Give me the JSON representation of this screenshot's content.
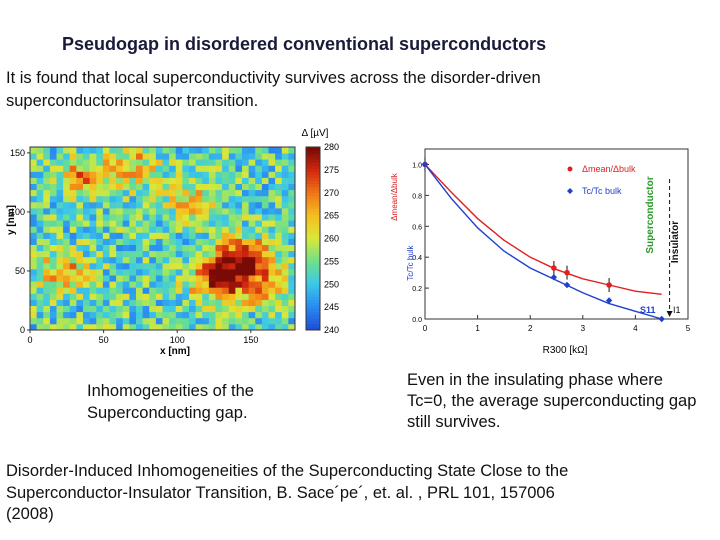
{
  "slide": {
    "title": "Pseudogap in  disordered conventional superconductors",
    "intro": "It is found that local superconductivity survives across the disorder-driven superconductorinsulator transition.",
    "caption_left": "Inhomogeneities of the Superconducting gap.",
    "caption_right": "Even in the insulating phase where Tc=0, the average superconducting gap still survives.",
    "reference_lines": [
      "Disorder-Induced Inhomogeneities of the Superconducting State  Close to the",
      "Superconductor-Insulator Transition, B. Sace´pe´, et.  al. , PRL 101, 157006",
      "(2008)"
    ]
  },
  "chart_data": [
    {
      "type": "heatmap",
      "title": "",
      "xlabel": "x [nm]",
      "ylabel": "y [nm]",
      "xlim": [
        0,
        180
      ],
      "ylim": [
        0,
        155
      ],
      "x_ticks": [
        "0",
        "50",
        "100",
        "150"
      ],
      "y_ticks": [
        "0",
        "50",
        "100",
        "150"
      ],
      "colorbar": {
        "label": "Δ [µV]",
        "range": [
          240,
          280
        ],
        "ticks": [
          "240",
          "245",
          "250",
          "255",
          "260",
          "265",
          "270",
          "275",
          "280"
        ],
        "colors": [
          "#1e4fd8",
          "#2a8cf0",
          "#3cc8e8",
          "#6fe08a",
          "#d8e83a",
          "#f5c020",
          "#f07a18",
          "#d42a10",
          "#7a0a05"
        ]
      },
      "hot_regions": [
        {
          "x": 143,
          "y": 62,
          "strength": 1.0
        },
        {
          "x": 128,
          "y": 42,
          "strength": 0.85
        },
        {
          "x": 160,
          "y": 38,
          "strength": 0.55
        },
        {
          "x": 38,
          "y": 128,
          "strength": 0.55
        },
        {
          "x": 70,
          "y": 138,
          "strength": 0.45
        },
        {
          "x": 22,
          "y": 48,
          "strength": 0.5
        },
        {
          "x": 108,
          "y": 108,
          "strength": 0.35
        }
      ]
    },
    {
      "type": "scatter",
      "title": "",
      "xlabel": "R300 [kΩ]",
      "ylabel": "Δmean/Δbulk , Tc/Tc bulk",
      "xlim": [
        0,
        5
      ],
      "ylim": [
        0,
        1.1
      ],
      "x_ticks": [
        "0",
        "1",
        "2",
        "3",
        "4",
        "5"
      ],
      "y_ticks": [
        "0.0",
        "0.2",
        "0.4",
        "0.6",
        "0.8",
        "1.0"
      ],
      "series": [
        {
          "name": "Δmean/Δbulk",
          "color": "#e02020",
          "marker": "circle",
          "x": [
            0,
            2.45,
            2.7,
            3.5
          ],
          "y": [
            1.0,
            0.33,
            0.3,
            0.22
          ],
          "fit_x": [
            0,
            0.5,
            1.0,
            1.5,
            2.0,
            2.5,
            3.0,
            3.5,
            4.0,
            4.5
          ],
          "fit_y": [
            1.0,
            0.82,
            0.65,
            0.51,
            0.4,
            0.32,
            0.26,
            0.22,
            0.18,
            0.16
          ]
        },
        {
          "name": "Tc/Tc bulk",
          "color": "#2040d0",
          "marker": "diamond",
          "x": [
            0,
            2.45,
            2.7,
            3.5,
            4.5
          ],
          "y": [
            1.0,
            0.27,
            0.22,
            0.12,
            0.0
          ],
          "fit_x": [
            0,
            0.5,
            1.0,
            1.5,
            2.0,
            2.5,
            3.0,
            3.5,
            4.0,
            4.5
          ],
          "fit_y": [
            1.0,
            0.78,
            0.59,
            0.44,
            0.33,
            0.25,
            0.17,
            0.1,
            0.05,
            0.0
          ]
        }
      ],
      "annotations": [
        "Superconductor",
        "Insulator",
        "S11",
        "I1"
      ],
      "annotation_colors": {
        "superconductor": "#2a9a2a",
        "insulator": "#111111"
      }
    }
  ]
}
